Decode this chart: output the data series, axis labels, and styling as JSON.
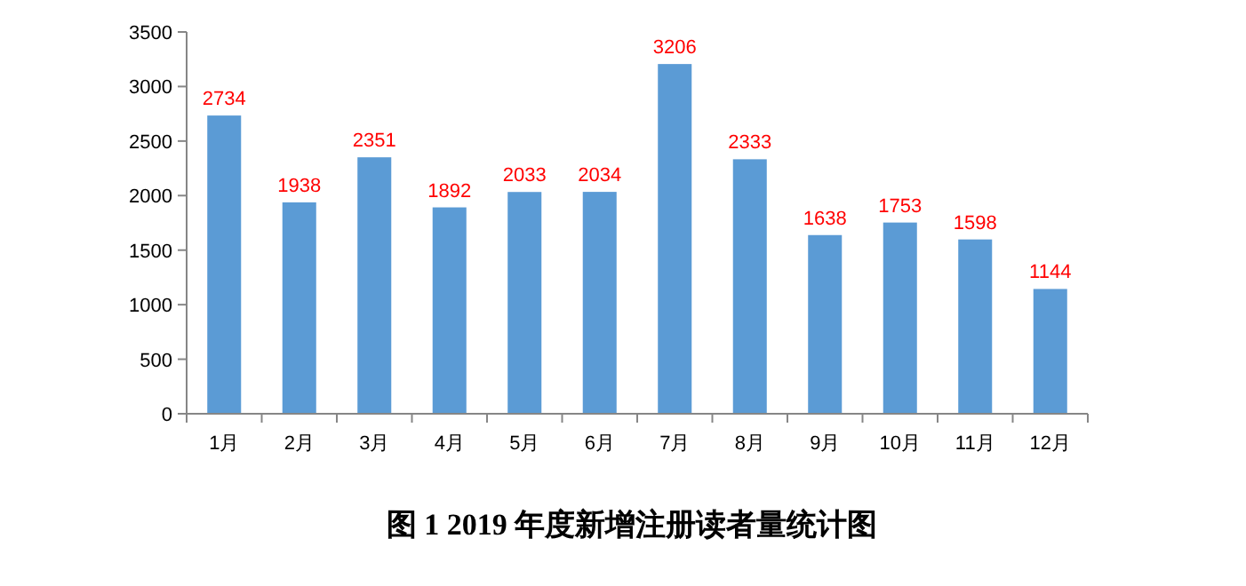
{
  "chart_data": {
    "type": "bar",
    "title": "图 1    2019 年度新增注册读者量统计图",
    "categories": [
      "1月",
      "2月",
      "3月",
      "4月",
      "5月",
      "6月",
      "7月",
      "8月",
      "9月",
      "10月",
      "11月",
      "12月"
    ],
    "values": [
      2734,
      1938,
      2351,
      1892,
      2033,
      2034,
      3206,
      2333,
      1638,
      1753,
      1598,
      1144
    ],
    "color": "#5b9bd5",
    "data_labels": true,
    "ylim": [
      0,
      3500
    ],
    "yticks": [
      0,
      500,
      1000,
      1500,
      2000,
      2500,
      3000,
      3500
    ],
    "grid": false,
    "legend": false
  }
}
